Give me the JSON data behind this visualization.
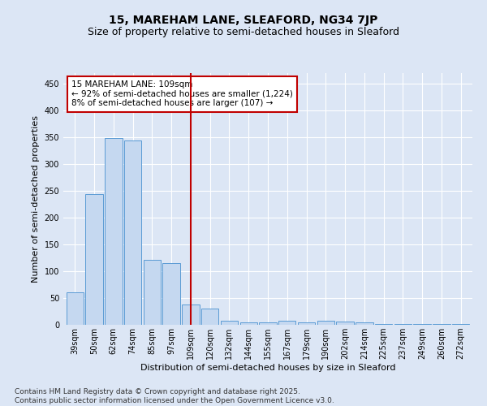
{
  "title1": "15, MAREHAM LANE, SLEAFORD, NG34 7JP",
  "title2": "Size of property relative to semi-detached houses in Sleaford",
  "xlabel": "Distribution of semi-detached houses by size in Sleaford",
  "ylabel": "Number of semi-detached properties",
  "categories": [
    "39sqm",
    "50sqm",
    "62sqm",
    "74sqm",
    "85sqm",
    "97sqm",
    "109sqm",
    "120sqm",
    "132sqm",
    "144sqm",
    "155sqm",
    "167sqm",
    "179sqm",
    "190sqm",
    "202sqm",
    "214sqm",
    "225sqm",
    "237sqm",
    "249sqm",
    "260sqm",
    "272sqm"
  ],
  "values": [
    60,
    244,
    348,
    344,
    122,
    115,
    38,
    30,
    8,
    5,
    5,
    7,
    5,
    7,
    6,
    4,
    1,
    1,
    1,
    1,
    1
  ],
  "bar_color": "#c5d8f0",
  "bar_edge_color": "#5b9bd5",
  "highlight_index": 6,
  "highlight_color_line": "#c00000",
  "annotation_line1": "15 MAREHAM LANE: 109sqm",
  "annotation_line2": "← 92% of semi-detached houses are smaller (1,224)",
  "annotation_line3": "8% of semi-detached houses are larger (107) →",
  "annotation_box_color": "#ffffff",
  "annotation_box_edge": "#c00000",
  "ylim": [
    0,
    470
  ],
  "yticks": [
    0,
    50,
    100,
    150,
    200,
    250,
    300,
    350,
    400,
    450
  ],
  "bg_color": "#dce6f5",
  "plot_bg_color": "#dce6f5",
  "grid_color": "#ffffff",
  "footer_text": "Contains HM Land Registry data © Crown copyright and database right 2025.\nContains public sector information licensed under the Open Government Licence v3.0.",
  "title_fontsize": 10,
  "subtitle_fontsize": 9,
  "tick_fontsize": 7,
  "label_fontsize": 8,
  "footer_fontsize": 6.5,
  "annotation_fontsize": 7.5
}
